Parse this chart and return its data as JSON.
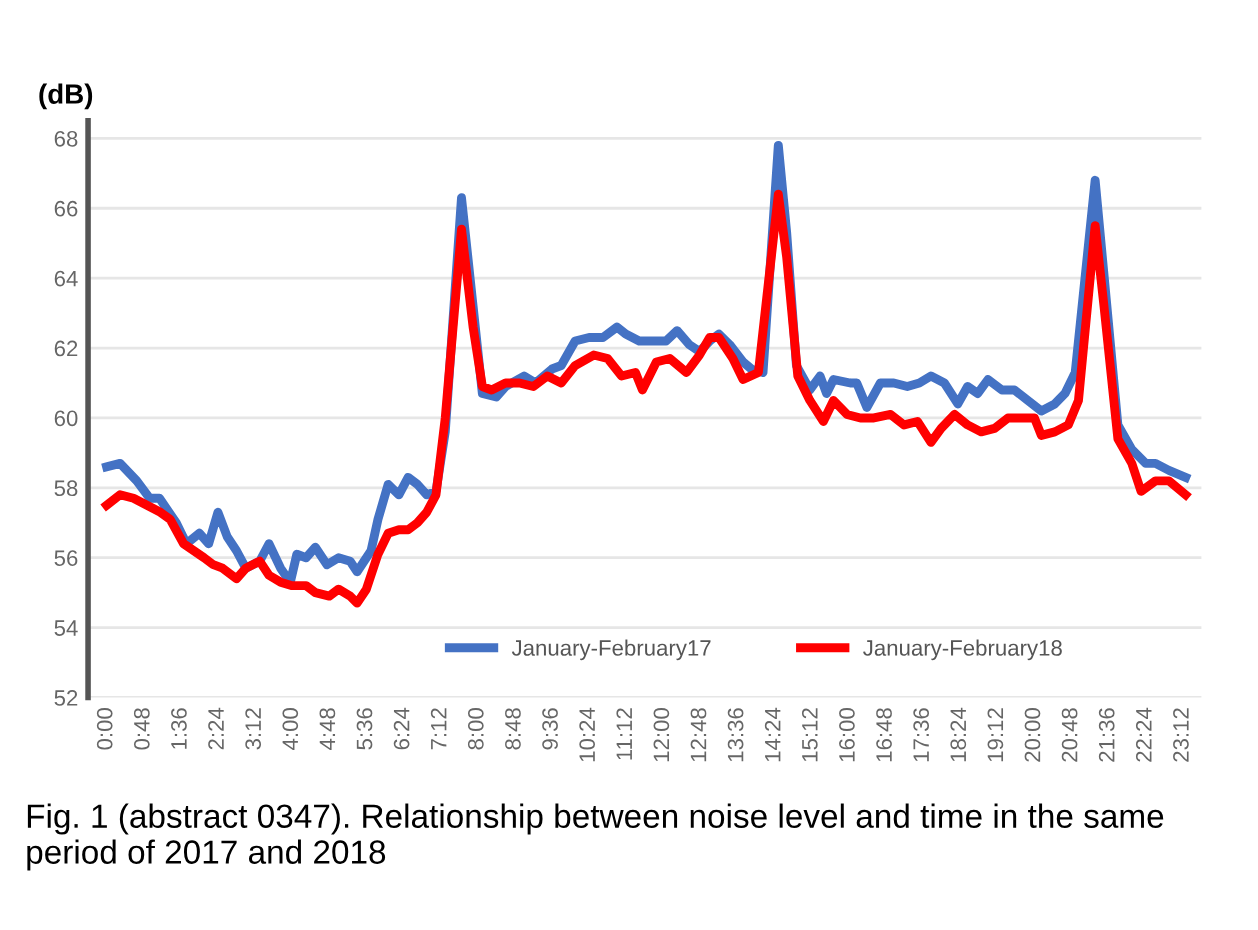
{
  "chart_data": {
    "type": "line",
    "ylabel": "(dB)",
    "annotations": [
      "Fig. 1 (abstract 0347). Relationship between noise level and time in the same period of 2017 and 2018"
    ],
    "xlim": [
      -0.4,
      23.6
    ],
    "ylim": [
      52,
      68.5
    ],
    "xticks": [
      {
        "value": 0,
        "label": "0:00"
      },
      {
        "value": 0.8,
        "label": "0:48"
      },
      {
        "value": 1.6,
        "label": "1:36"
      },
      {
        "value": 2.4,
        "label": "2:24"
      },
      {
        "value": 3.2,
        "label": "3:12"
      },
      {
        "value": 4,
        "label": "4:00"
      },
      {
        "value": 4.8,
        "label": "4:48"
      },
      {
        "value": 5.6,
        "label": "5:36"
      },
      {
        "value": 6.4,
        "label": "6:24"
      },
      {
        "value": 7.2,
        "label": "7:12"
      },
      {
        "value": 8,
        "label": "8:00"
      },
      {
        "value": 8.8,
        "label": "8:48"
      },
      {
        "value": 9.6,
        "label": "9:36"
      },
      {
        "value": 10.4,
        "label": "10:24"
      },
      {
        "value": 11.2,
        "label": "11:12"
      },
      {
        "value": 12,
        "label": "12:00"
      },
      {
        "value": 12.8,
        "label": "12:48"
      },
      {
        "value": 13.6,
        "label": "13:36"
      },
      {
        "value": 14.4,
        "label": "14:24"
      },
      {
        "value": 15.2,
        "label": "15:12"
      },
      {
        "value": 16,
        "label": "16:00"
      },
      {
        "value": 16.8,
        "label": "16:48"
      },
      {
        "value": 17.6,
        "label": "17:36"
      },
      {
        "value": 18.4,
        "label": "18:24"
      },
      {
        "value": 19.2,
        "label": "19:12"
      },
      {
        "value": 20,
        "label": "20:00"
      },
      {
        "value": 20.8,
        "label": "20:48"
      },
      {
        "value": 21.6,
        "label": "21:36"
      },
      {
        "value": 22.4,
        "label": "22:24"
      },
      {
        "value": 23.2,
        "label": "23:12"
      }
    ],
    "yticks": [
      52,
      54,
      56,
      58,
      60,
      62,
      64,
      66,
      68
    ],
    "grid": "y",
    "legend": "bottom",
    "line_style": "solid",
    "series": [
      {
        "name": "January-February17",
        "color": "#4472c4",
        "x": [
          0,
          0.29,
          0.65,
          0.93,
          1.14,
          1.5,
          1.72,
          2.0,
          2.2,
          2.4,
          2.6,
          2.8,
          3.0,
          3.3,
          3.5,
          3.75,
          3.96,
          4.1,
          4.3,
          4.5,
          4.75,
          5.0,
          5.25,
          5.4,
          5.7,
          5.85,
          6.07,
          6.3,
          6.5,
          6.7,
          6.9,
          7.1,
          7.3,
          7.65,
          7.9,
          8.1,
          8.4,
          8.6,
          9.0,
          9.25,
          9.6,
          9.8,
          10.1,
          10.4,
          10.7,
          11.0,
          11.19,
          11.48,
          11.77,
          12.06,
          12.3,
          12.56,
          12.78,
          13.0,
          13.2,
          13.43,
          13.72,
          13.9,
          14.15,
          14.48,
          14.66,
          14.87,
          15.16,
          15.38,
          15.52,
          15.67,
          16.03,
          16.17,
          16.39,
          16.68,
          16.97,
          17.26,
          17.52,
          17.77,
          18.06,
          18.35,
          18.56,
          18.78,
          19.0,
          19.3,
          19.57,
          19.86,
          20.15,
          20.44,
          20.66,
          20.88,
          21.31,
          21.5,
          21.8,
          22.1,
          22.4,
          22.61,
          22.9,
          23.26
        ],
        "values": [
          58.6,
          58.7,
          58.2,
          57.7,
          57.7,
          57.0,
          56.4,
          56.7,
          56.4,
          57.3,
          56.6,
          56.2,
          55.7,
          55.9,
          56.4,
          55.7,
          55.3,
          56.1,
          56.0,
          56.3,
          55.8,
          56.0,
          55.9,
          55.6,
          56.2,
          57.1,
          58.1,
          57.8,
          58.3,
          58.1,
          57.8,
          57.9,
          59.6,
          66.3,
          63.2,
          60.7,
          60.6,
          60.9,
          61.2,
          61.0,
          61.4,
          61.5,
          62.2,
          62.3,
          62.3,
          62.6,
          62.4,
          62.2,
          62.2,
          62.2,
          62.5,
          62.1,
          61.9,
          62.2,
          62.4,
          62.1,
          61.6,
          61.4,
          61.3,
          67.8,
          65.3,
          61.5,
          60.8,
          61.2,
          60.7,
          61.1,
          61.0,
          61.0,
          60.3,
          61.0,
          61.0,
          60.9,
          61.0,
          61.2,
          61.0,
          60.4,
          60.9,
          60.7,
          61.1,
          60.8,
          60.8,
          60.5,
          60.2,
          60.4,
          60.7,
          61.3,
          66.8,
          64.1,
          59.8,
          59.1,
          58.7,
          58.7,
          58.5,
          58.3
        ]
      },
      {
        "name": "January-February18",
        "color": "#ff0000",
        "x": [
          0,
          0.29,
          0.58,
          0.87,
          1.16,
          1.37,
          1.66,
          1.88,
          2.1,
          2.3,
          2.5,
          2.8,
          3.0,
          3.3,
          3.5,
          3.75,
          4.0,
          4.3,
          4.5,
          4.8,
          5.0,
          5.25,
          5.4,
          5.6,
          5.85,
          6.07,
          6.3,
          6.5,
          6.7,
          6.9,
          7.1,
          7.3,
          7.65,
          7.9,
          8.1,
          8.3,
          8.6,
          8.9,
          9.2,
          9.5,
          9.8,
          10.1,
          10.5,
          10.8,
          11.1,
          11.4,
          11.55,
          11.85,
          12.14,
          12.5,
          12.78,
          13.0,
          13.2,
          13.5,
          13.72,
          14.05,
          14.48,
          14.66,
          14.9,
          15.16,
          15.45,
          15.67,
          15.96,
          16.25,
          16.54,
          16.9,
          17.19,
          17.48,
          17.77,
          17.99,
          18.28,
          18.56,
          18.85,
          19.14,
          19.43,
          19.72,
          20.0,
          20.15,
          20.44,
          20.73,
          20.95,
          21.31,
          21.5,
          21.8,
          22.1,
          22.3,
          22.61,
          22.9,
          23.26
        ],
        "values": [
          57.5,
          57.8,
          57.7,
          57.5,
          57.3,
          57.1,
          56.4,
          56.2,
          56.0,
          55.8,
          55.7,
          55.4,
          55.7,
          55.9,
          55.5,
          55.3,
          55.2,
          55.2,
          55.0,
          54.9,
          55.1,
          54.9,
          54.7,
          55.1,
          56.1,
          56.7,
          56.8,
          56.8,
          57.0,
          57.3,
          57.8,
          60.0,
          65.4,
          62.6,
          60.9,
          60.8,
          61.0,
          61.0,
          60.9,
          61.2,
          61.0,
          61.5,
          61.8,
          61.7,
          61.2,
          61.3,
          60.8,
          61.6,
          61.7,
          61.3,
          61.8,
          62.3,
          62.3,
          61.7,
          61.1,
          61.3,
          66.4,
          64.6,
          61.2,
          60.5,
          59.9,
          60.5,
          60.1,
          60.0,
          60.0,
          60.1,
          59.8,
          59.9,
          59.3,
          59.7,
          60.1,
          59.8,
          59.6,
          59.7,
          60.0,
          60.0,
          60.0,
          59.5,
          59.6,
          59.8,
          60.5,
          65.5,
          63.2,
          59.4,
          58.7,
          57.9,
          58.2,
          58.2,
          57.8
        ]
      }
    ]
  }
}
